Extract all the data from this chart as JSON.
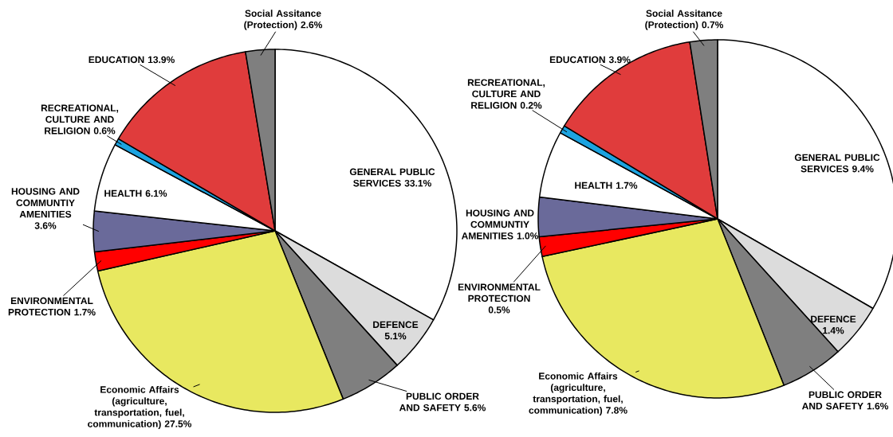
{
  "chart_data": [
    {
      "type": "pie",
      "categories": [
        "GENERAL PUBLIC SERVICES",
        "DEFENCE",
        "PUBLIC ORDER AND SAFETY",
        "Economic Affairs (agriculture, transportation, fuel, communication)",
        "ENVIRONMENTAL PROTECTION",
        "HOUSING AND COMMUNTIY AMENITIES",
        "HEALTH",
        "RECREATIONAL, CULTURE AND RELIGION",
        "EDUCATION",
        "Social Assitance (Protection)"
      ],
      "values": [
        33.1,
        5.1,
        5.6,
        27.5,
        1.7,
        3.6,
        6.1,
        0.6,
        13.9,
        2.6
      ],
      "value_labels": [
        "33.1%",
        "5.1%",
        "5.6%",
        "27.5%",
        "1.7%",
        "3.6%",
        "6.1%",
        "0.6%",
        "13.9%",
        "2.6%"
      ],
      "colors": [
        "#ffffff",
        "#dcdcdc",
        "#7f7f7f",
        "#e8e860",
        "#ff0000",
        "#6a6a9a",
        "#ffffff",
        "#1ca3e0",
        "#e03c3c",
        "#7f7f7f"
      ]
    },
    {
      "type": "pie",
      "categories": [
        "GENERAL PUBLIC SERVICES",
        "DEFENCE",
        "PUBLIC ORDER AND SAFETY",
        "Economic Affairs (agriculture, transportation, fuel, communication)",
        "ENVIRONMENTAL PROTECTION",
        "HOUSING AND COMMUNTIY AMENITIES",
        "HEALTH",
        "RECREATIONAL, CULTURE AND RELIGION",
        "EDUCATION",
        "Social Assitance (Protection)"
      ],
      "values": [
        9.4,
        1.4,
        1.6,
        7.8,
        0.5,
        1.0,
        1.7,
        0.2,
        3.9,
        0.7
      ],
      "value_labels": [
        "9.4%",
        "1.4%",
        "1.6%",
        "7.8%",
        "0.5%",
        "1.0%",
        "1.7%",
        "0.2%",
        "3.9%",
        "0.7%"
      ],
      "colors": [
        "#ffffff",
        "#dcdcdc",
        "#7f7f7f",
        "#e8e860",
        "#ff0000",
        "#6a6a9a",
        "#ffffff",
        "#1ca3e0",
        "#e03c3c",
        "#7f7f7f"
      ]
    }
  ]
}
